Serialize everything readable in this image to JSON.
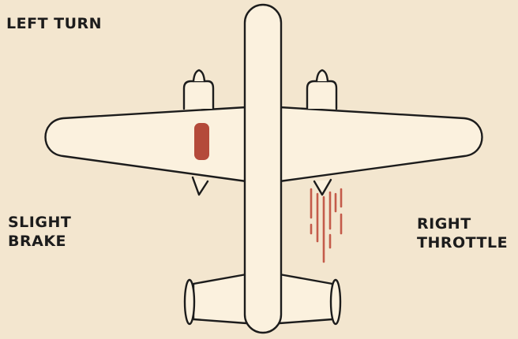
{
  "title": "LEFT TURN",
  "left_label": {
    "line1": "SLIGHT",
    "line2": "BRAKE"
  },
  "right_label": {
    "line1": "RIGHT",
    "line2": "THROTTLE"
  },
  "colors": {
    "background": "#f3e6cf",
    "outline": "#1c1c1c",
    "brake_indicator": "#b44a3a",
    "throttle_exhaust": "#c45b4a"
  },
  "icons": {
    "aircraft": "top-down-twin-engine-airplane",
    "brake": "brake-indicator-bar",
    "exhaust": "throttle-exhaust-streaks"
  }
}
